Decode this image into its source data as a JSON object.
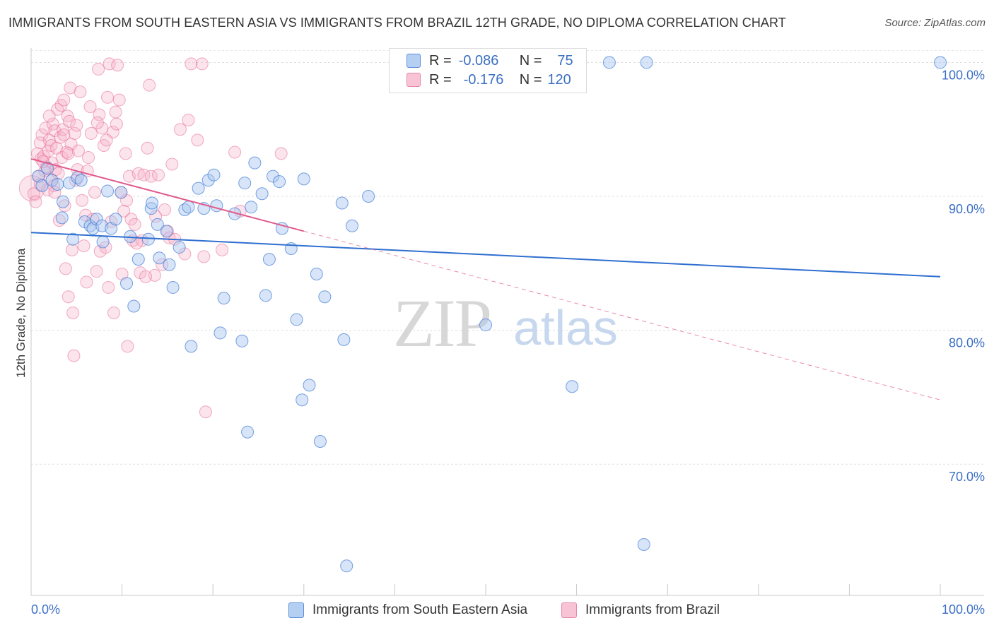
{
  "title": "IMMIGRANTS FROM SOUTH EASTERN ASIA VS IMMIGRANTS FROM BRAZIL 12TH GRADE, NO DIPLOMA CORRELATION CHART",
  "source": "Source: ZipAtlas.com",
  "watermark": {
    "zip": "ZIP",
    "atlas": "atlas"
  },
  "legend_top": {
    "rows": [
      {
        "r_label": "R =",
        "r_value": "-0.086",
        "n_label": "N =",
        "n_value": "75"
      },
      {
        "r_label": "R =",
        "r_value": "-0.176",
        "n_label": "N =",
        "n_value": "120"
      }
    ]
  },
  "colors": {
    "blue": "#3d7ad6",
    "blue_fill": "#a9c6f0",
    "pink": "#e56a96",
    "pink_fill": "#f6b3c8",
    "axis_text": "#3d6fc6",
    "grid": "#dcdcdc"
  },
  "chart_data": {
    "type": "scatter",
    "xlabel": "",
    "ylabel": "12th Grade, No Diploma",
    "xlim": [
      0,
      100
    ],
    "ylim": [
      60.2,
      101.5
    ],
    "x_tick_labels": [
      "0.0%",
      "100.0%"
    ],
    "y_ticks": [
      100,
      90,
      80,
      70
    ],
    "y_tick_labels": [
      "100.0%",
      "90.0%",
      "80.0%",
      "70.0%"
    ],
    "grid": true,
    "legend_position": "bottom",
    "series": [
      {
        "name": "Immigrants from South Eastern Asia",
        "color": "#3d7ad6",
        "trendline": {
          "x": [
            0,
            100
          ],
          "y": [
            87.3,
            84.0
          ],
          "style": "solid"
        },
        "points": [
          [
            0.8,
            91.5
          ],
          [
            1.2,
            90.8
          ],
          [
            1.8,
            92.1
          ],
          [
            2.3,
            91.2
          ],
          [
            2.9,
            90.9
          ],
          [
            3.5,
            89.6
          ],
          [
            3.4,
            88.4
          ],
          [
            4.2,
            91.0
          ],
          [
            4.6,
            86.8
          ],
          [
            5.1,
            91.4
          ],
          [
            5.5,
            91.2
          ],
          [
            5.9,
            88.1
          ],
          [
            6.5,
            87.8
          ],
          [
            6.8,
            87.6
          ],
          [
            7.2,
            88.3
          ],
          [
            7.8,
            87.8
          ],
          [
            7.9,
            86.6
          ],
          [
            8.4,
            90.4
          ],
          [
            8.8,
            87.6
          ],
          [
            9.3,
            88.3
          ],
          [
            9.9,
            90.3
          ],
          [
            10.5,
            83.5
          ],
          [
            10.9,
            87.0
          ],
          [
            11.3,
            81.8
          ],
          [
            11.8,
            85.3
          ],
          [
            12.9,
            86.8
          ],
          [
            13.2,
            89.1
          ],
          [
            13.3,
            89.5
          ],
          [
            13.9,
            87.9
          ],
          [
            14.1,
            85.4
          ],
          [
            14.9,
            87.4
          ],
          [
            15.2,
            84.9
          ],
          [
            15.6,
            83.2
          ],
          [
            16.3,
            86.2
          ],
          [
            16.9,
            89.0
          ],
          [
            17.3,
            89.2
          ],
          [
            17.6,
            78.8
          ],
          [
            18.4,
            90.6
          ],
          [
            19.0,
            89.1
          ],
          [
            19.5,
            91.2
          ],
          [
            20.1,
            91.6
          ],
          [
            20.4,
            89.3
          ],
          [
            20.8,
            79.8
          ],
          [
            21.2,
            82.4
          ],
          [
            22.4,
            88.7
          ],
          [
            23.2,
            79.2
          ],
          [
            23.5,
            91.0
          ],
          [
            23.8,
            72.4
          ],
          [
            24.2,
            89.2
          ],
          [
            24.6,
            92.5
          ],
          [
            25.4,
            90.2
          ],
          [
            25.8,
            82.6
          ],
          [
            26.2,
            85.3
          ],
          [
            26.6,
            91.5
          ],
          [
            27.3,
            91.1
          ],
          [
            27.6,
            87.6
          ],
          [
            28.6,
            86.1
          ],
          [
            29.2,
            80.8
          ],
          [
            29.8,
            74.8
          ],
          [
            30.0,
            91.3
          ],
          [
            30.6,
            75.9
          ],
          [
            31.4,
            84.2
          ],
          [
            31.8,
            71.7
          ],
          [
            32.3,
            82.5
          ],
          [
            34.2,
            89.5
          ],
          [
            34.4,
            79.3
          ],
          [
            34.7,
            62.4
          ],
          [
            35.3,
            87.8
          ],
          [
            37.1,
            90.0
          ],
          [
            50.0,
            80.4
          ],
          [
            59.5,
            75.8
          ],
          [
            63.6,
            100.0
          ],
          [
            67.4,
            64.0
          ],
          [
            67.7,
            100.0
          ],
          [
            100.0,
            100.0
          ]
        ]
      },
      {
        "name": "Immigrants from Brazil",
        "color": "#e56a96",
        "trendline": {
          "x": [
            0,
            30
          ],
          "y": [
            92.8,
            87.4
          ],
          "style": "solid",
          "extension": {
            "x": [
              30,
              100
            ],
            "y": [
              87.4,
              74.8
            ],
            "style": "dashed"
          }
        },
        "points": [
          [
            0.3,
            90.2
          ],
          [
            0.5,
            89.6
          ],
          [
            0.7,
            93.2
          ],
          [
            0.8,
            91.5
          ],
          [
            1.0,
            94.0
          ],
          [
            1.1,
            92.8
          ],
          [
            1.2,
            94.6
          ],
          [
            1.4,
            93.0
          ],
          [
            1.5,
            91.9
          ],
          [
            1.6,
            95.1
          ],
          [
            1.7,
            92.2
          ],
          [
            1.8,
            90.5
          ],
          [
            1.9,
            93.4
          ],
          [
            2.0,
            94.2
          ],
          [
            2.1,
            91.3
          ],
          [
            2.2,
            93.8
          ],
          [
            2.3,
            92.5
          ],
          [
            2.4,
            95.4
          ],
          [
            2.5,
            90.8
          ],
          [
            2.6,
            94.9
          ],
          [
            2.7,
            92.0
          ],
          [
            2.8,
            93.6
          ],
          [
            2.9,
            96.5
          ],
          [
            3.0,
            91.7
          ],
          [
            3.1,
            88.2
          ],
          [
            3.2,
            94.4
          ],
          [
            3.3,
            96.8
          ],
          [
            3.4,
            92.9
          ],
          [
            3.5,
            95.0
          ],
          [
            3.6,
            97.2
          ],
          [
            3.7,
            89.3
          ],
          [
            3.8,
            84.6
          ],
          [
            3.9,
            93.3
          ],
          [
            4.0,
            96.0
          ],
          [
            4.1,
            82.5
          ],
          [
            4.2,
            95.6
          ],
          [
            4.3,
            98.1
          ],
          [
            4.4,
            93.9
          ],
          [
            4.5,
            86.0
          ],
          [
            4.6,
            81.3
          ],
          [
            4.7,
            78.1
          ],
          [
            4.8,
            94.7
          ],
          [
            4.9,
            91.2
          ],
          [
            5.0,
            95.3
          ],
          [
            5.2,
            93.4
          ],
          [
            5.4,
            97.8
          ],
          [
            5.6,
            89.7
          ],
          [
            5.8,
            86.3
          ],
          [
            6.0,
            88.6
          ],
          [
            6.1,
            83.6
          ],
          [
            6.3,
            92.9
          ],
          [
            6.5,
            96.7
          ],
          [
            6.6,
            94.7
          ],
          [
            6.8,
            88.3
          ],
          [
            7.0,
            90.3
          ],
          [
            7.2,
            84.4
          ],
          [
            7.4,
            99.5
          ],
          [
            7.5,
            96.1
          ],
          [
            7.6,
            85.9
          ],
          [
            7.8,
            95.1
          ],
          [
            8.0,
            93.8
          ],
          [
            8.2,
            86.2
          ],
          [
            8.4,
            97.4
          ],
          [
            8.5,
            83.2
          ],
          [
            8.6,
            99.9
          ],
          [
            8.8,
            88.1
          ],
          [
            9.0,
            94.8
          ],
          [
            9.1,
            81.3
          ],
          [
            9.3,
            96.3
          ],
          [
            9.5,
            99.8
          ],
          [
            9.7,
            97.2
          ],
          [
            9.9,
            90.3
          ],
          [
            10.0,
            84.2
          ],
          [
            10.2,
            88.9
          ],
          [
            10.4,
            93.2
          ],
          [
            10.6,
            78.8
          ],
          [
            10.8,
            91.5
          ],
          [
            11.0,
            88.3
          ],
          [
            11.2,
            86.7
          ],
          [
            11.4,
            87.9
          ],
          [
            11.8,
            91.7
          ],
          [
            12.0,
            84.3
          ],
          [
            12.2,
            86.7
          ],
          [
            12.4,
            91.6
          ],
          [
            12.8,
            93.6
          ],
          [
            13.0,
            98.3
          ],
          [
            13.2,
            91.5
          ],
          [
            13.6,
            84.1
          ],
          [
            14.0,
            91.6
          ],
          [
            14.4,
            84.9
          ],
          [
            14.7,
            89.0
          ],
          [
            15.0,
            87.4
          ],
          [
            15.2,
            86.9
          ],
          [
            15.5,
            92.4
          ],
          [
            16.4,
            95.0
          ],
          [
            16.9,
            85.7
          ],
          [
            17.3,
            95.7
          ],
          [
            17.6,
            99.9
          ],
          [
            18.3,
            94.2
          ],
          [
            19.0,
            85.5
          ],
          [
            19.2,
            73.9
          ],
          [
            21.0,
            86.0
          ],
          [
            22.4,
            93.3
          ],
          [
            23.0,
            88.9
          ],
          [
            1.0,
            90.9
          ],
          [
            1.3,
            92.6
          ],
          [
            2.0,
            96.0
          ],
          [
            2.6,
            90.3
          ],
          [
            3.6,
            94.6
          ],
          [
            4.1,
            93.2
          ],
          [
            5.1,
            92.0
          ],
          [
            6.2,
            91.9
          ],
          [
            7.3,
            95.5
          ],
          [
            8.3,
            94.2
          ],
          [
            9.4,
            95.4
          ],
          [
            10.5,
            89.7
          ],
          [
            11.6,
            86.5
          ],
          [
            12.6,
            84.0
          ],
          [
            13.7,
            88.5
          ],
          [
            15.8,
            86.8
          ],
          [
            18.8,
            99.9
          ],
          [
            27.5,
            93.2
          ]
        ]
      }
    ]
  },
  "bottom_legend": {
    "series1": "Immigrants from South Eastern Asia",
    "series2": "Immigrants from Brazil"
  }
}
